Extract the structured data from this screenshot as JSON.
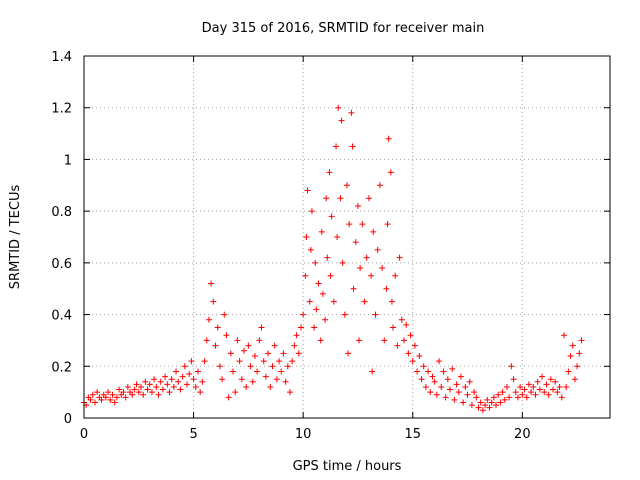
{
  "chart_data": {
    "type": "scatter",
    "title": "Day 315 of 2016, SRMTID for receiver main",
    "xlabel": "GPS time / hours",
    "ylabel": "SRMTID / TECUs",
    "xlim": [
      0,
      24
    ],
    "ylim": [
      0,
      1.4
    ],
    "xticks": [
      0,
      5,
      10,
      15,
      20
    ],
    "xtick_labels": [
      "0",
      "5",
      "10",
      "15",
      "20"
    ],
    "yticks": [
      0,
      0.2,
      0.4,
      0.6,
      0.8,
      1,
      1.2,
      1.4
    ],
    "ytick_labels": [
      "0",
      "0.2",
      "0.4",
      "0.6",
      "0.8",
      "1",
      "1.2",
      "1.4"
    ],
    "grid": true,
    "marker": "+",
    "color": "#ff0000",
    "series": [
      {
        "name": "SRMTID",
        "points": [
          [
            0.0,
            0.06
          ],
          [
            0.1,
            0.05
          ],
          [
            0.2,
            0.08
          ],
          [
            0.3,
            0.07
          ],
          [
            0.4,
            0.09
          ],
          [
            0.5,
            0.06
          ],
          [
            0.6,
            0.1
          ],
          [
            0.7,
            0.08
          ],
          [
            0.8,
            0.07
          ],
          [
            0.9,
            0.09
          ],
          [
            1.0,
            0.08
          ],
          [
            1.1,
            0.1
          ],
          [
            1.2,
            0.07
          ],
          [
            1.3,
            0.09
          ],
          [
            1.4,
            0.06
          ],
          [
            1.5,
            0.08
          ],
          [
            1.6,
            0.11
          ],
          [
            1.7,
            0.09
          ],
          [
            1.8,
            0.1
          ],
          [
            1.9,
            0.08
          ],
          [
            2.0,
            0.12
          ],
          [
            2.1,
            0.1
          ],
          [
            2.2,
            0.09
          ],
          [
            2.3,
            0.11
          ],
          [
            2.4,
            0.13
          ],
          [
            2.5,
            0.1
          ],
          [
            2.6,
            0.12
          ],
          [
            2.7,
            0.09
          ],
          [
            2.8,
            0.14
          ],
          [
            2.9,
            0.11
          ],
          [
            3.0,
            0.13
          ],
          [
            3.1,
            0.1
          ],
          [
            3.2,
            0.15
          ],
          [
            3.3,
            0.12
          ],
          [
            3.4,
            0.09
          ],
          [
            3.5,
            0.14
          ],
          [
            3.6,
            0.11
          ],
          [
            3.7,
            0.16
          ],
          [
            3.8,
            0.13
          ],
          [
            3.9,
            0.1
          ],
          [
            4.0,
            0.15
          ],
          [
            4.1,
            0.12
          ],
          [
            4.2,
            0.18
          ],
          [
            4.3,
            0.14
          ],
          [
            4.4,
            0.11
          ],
          [
            4.5,
            0.16
          ],
          [
            4.6,
            0.2
          ],
          [
            4.7,
            0.13
          ],
          [
            4.8,
            0.17
          ],
          [
            4.9,
            0.22
          ],
          [
            5.0,
            0.15
          ],
          [
            5.1,
            0.12
          ],
          [
            5.2,
            0.18
          ],
          [
            5.3,
            0.1
          ],
          [
            5.4,
            0.14
          ],
          [
            5.5,
            0.22
          ],
          [
            5.6,
            0.3
          ],
          [
            5.7,
            0.38
          ],
          [
            5.8,
            0.52
          ],
          [
            5.9,
            0.45
          ],
          [
            6.0,
            0.28
          ],
          [
            6.1,
            0.35
          ],
          [
            6.2,
            0.2
          ],
          [
            6.3,
            0.15
          ],
          [
            6.4,
            0.4
          ],
          [
            6.5,
            0.32
          ],
          [
            6.6,
            0.08
          ],
          [
            6.7,
            0.25
          ],
          [
            6.8,
            0.18
          ],
          [
            6.9,
            0.1
          ],
          [
            7.0,
            0.3
          ],
          [
            7.1,
            0.22
          ],
          [
            7.2,
            0.15
          ],
          [
            7.3,
            0.26
          ],
          [
            7.4,
            0.12
          ],
          [
            7.5,
            0.28
          ],
          [
            7.6,
            0.2
          ],
          [
            7.7,
            0.14
          ],
          [
            7.8,
            0.24
          ],
          [
            7.9,
            0.18
          ],
          [
            8.0,
            0.3
          ],
          [
            8.1,
            0.35
          ],
          [
            8.2,
            0.22
          ],
          [
            8.3,
            0.16
          ],
          [
            8.4,
            0.25
          ],
          [
            8.5,
            0.12
          ],
          [
            8.6,
            0.2
          ],
          [
            8.7,
            0.28
          ],
          [
            8.8,
            0.15
          ],
          [
            8.9,
            0.22
          ],
          [
            9.0,
            0.18
          ],
          [
            9.1,
            0.25
          ],
          [
            9.2,
            0.14
          ],
          [
            9.3,
            0.2
          ],
          [
            9.4,
            0.1
          ],
          [
            9.5,
            0.22
          ],
          [
            9.6,
            0.28
          ],
          [
            9.7,
            0.32
          ],
          [
            9.8,
            0.25
          ],
          [
            9.9,
            0.35
          ],
          [
            10.0,
            0.4
          ],
          [
            10.1,
            0.55
          ],
          [
            10.15,
            0.7
          ],
          [
            10.2,
            0.88
          ],
          [
            10.3,
            0.45
          ],
          [
            10.35,
            0.65
          ],
          [
            10.4,
            0.8
          ],
          [
            10.5,
            0.35
          ],
          [
            10.55,
            0.6
          ],
          [
            10.6,
            0.42
          ],
          [
            10.7,
            0.52
          ],
          [
            10.8,
            0.3
          ],
          [
            10.85,
            0.72
          ],
          [
            10.9,
            0.48
          ],
          [
            11.0,
            0.38
          ],
          [
            11.05,
            0.85
          ],
          [
            11.1,
            0.62
          ],
          [
            11.2,
            0.95
          ],
          [
            11.25,
            0.55
          ],
          [
            11.3,
            0.78
          ],
          [
            11.4,
            0.45
          ],
          [
            11.5,
            1.05
          ],
          [
            11.55,
            0.7
          ],
          [
            11.6,
            1.2
          ],
          [
            11.7,
            0.85
          ],
          [
            11.75,
            1.15
          ],
          [
            11.8,
            0.6
          ],
          [
            11.9,
            0.4
          ],
          [
            12.0,
            0.9
          ],
          [
            12.05,
            0.25
          ],
          [
            12.1,
            0.75
          ],
          [
            12.2,
            1.18
          ],
          [
            12.25,
            1.05
          ],
          [
            12.3,
            0.5
          ],
          [
            12.4,
            0.68
          ],
          [
            12.5,
            0.82
          ],
          [
            12.55,
            0.3
          ],
          [
            12.6,
            0.58
          ],
          [
            12.7,
            0.75
          ],
          [
            12.8,
            0.45
          ],
          [
            12.9,
            0.62
          ],
          [
            13.0,
            0.85
          ],
          [
            13.1,
            0.55
          ],
          [
            13.15,
            0.18
          ],
          [
            13.2,
            0.72
          ],
          [
            13.3,
            0.4
          ],
          [
            13.4,
            0.65
          ],
          [
            13.5,
            0.9
          ],
          [
            13.6,
            0.58
          ],
          [
            13.7,
            0.3
          ],
          [
            13.8,
            0.5
          ],
          [
            13.85,
            0.75
          ],
          [
            13.9,
            1.08
          ],
          [
            14.0,
            0.95
          ],
          [
            14.05,
            0.45
          ],
          [
            14.1,
            0.35
          ],
          [
            14.2,
            0.55
          ],
          [
            14.3,
            0.28
          ],
          [
            14.4,
            0.62
          ],
          [
            14.5,
            0.38
          ],
          [
            14.6,
            0.3
          ],
          [
            14.7,
            0.36
          ],
          [
            14.8,
            0.25
          ],
          [
            14.9,
            0.32
          ],
          [
            15.0,
            0.22
          ],
          [
            15.1,
            0.28
          ],
          [
            15.2,
            0.18
          ],
          [
            15.3,
            0.24
          ],
          [
            15.4,
            0.15
          ],
          [
            15.5,
            0.2
          ],
          [
            15.6,
            0.12
          ],
          [
            15.7,
            0.18
          ],
          [
            15.8,
            0.1
          ],
          [
            15.9,
            0.16
          ],
          [
            16.0,
            0.14
          ],
          [
            16.1,
            0.09
          ],
          [
            16.2,
            0.22
          ],
          [
            16.3,
            0.12
          ],
          [
            16.4,
            0.18
          ],
          [
            16.5,
            0.08
          ],
          [
            16.6,
            0.15
          ],
          [
            16.7,
            0.11
          ],
          [
            16.8,
            0.19
          ],
          [
            16.9,
            0.07
          ],
          [
            17.0,
            0.13
          ],
          [
            17.1,
            0.1
          ],
          [
            17.2,
            0.16
          ],
          [
            17.3,
            0.06
          ],
          [
            17.4,
            0.12
          ],
          [
            17.5,
            0.09
          ],
          [
            17.6,
            0.14
          ],
          [
            17.7,
            0.05
          ],
          [
            17.8,
            0.1
          ],
          [
            17.9,
            0.08
          ],
          [
            18.0,
            0.04
          ],
          [
            18.1,
            0.06
          ],
          [
            18.2,
            0.03
          ],
          [
            18.3,
            0.05
          ],
          [
            18.4,
            0.07
          ],
          [
            18.5,
            0.04
          ],
          [
            18.6,
            0.06
          ],
          [
            18.7,
            0.08
          ],
          [
            18.8,
            0.05
          ],
          [
            18.9,
            0.09
          ],
          [
            19.0,
            0.06
          ],
          [
            19.1,
            0.1
          ],
          [
            19.2,
            0.07
          ],
          [
            19.3,
            0.12
          ],
          [
            19.4,
            0.08
          ],
          [
            19.5,
            0.2
          ],
          [
            19.6,
            0.15
          ],
          [
            19.7,
            0.1
          ],
          [
            19.8,
            0.08
          ],
          [
            19.9,
            0.12
          ],
          [
            20.0,
            0.09
          ],
          [
            20.1,
            0.11
          ],
          [
            20.2,
            0.08
          ],
          [
            20.3,
            0.13
          ],
          [
            20.4,
            0.1
          ],
          [
            20.5,
            0.12
          ],
          [
            20.6,
            0.09
          ],
          [
            20.7,
            0.14
          ],
          [
            20.8,
            0.11
          ],
          [
            20.9,
            0.16
          ],
          [
            21.0,
            0.1
          ],
          [
            21.1,
            0.13
          ],
          [
            21.2,
            0.09
          ],
          [
            21.3,
            0.15
          ],
          [
            21.4,
            0.11
          ],
          [
            21.5,
            0.14
          ],
          [
            21.6,
            0.1
          ],
          [
            21.7,
            0.12
          ],
          [
            21.8,
            0.08
          ],
          [
            21.9,
            0.32
          ],
          [
            22.0,
            0.12
          ],
          [
            22.1,
            0.18
          ],
          [
            22.2,
            0.24
          ],
          [
            22.3,
            0.28
          ],
          [
            22.4,
            0.15
          ],
          [
            22.5,
            0.2
          ],
          [
            22.6,
            0.25
          ],
          [
            22.7,
            0.3
          ]
        ]
      }
    ]
  }
}
